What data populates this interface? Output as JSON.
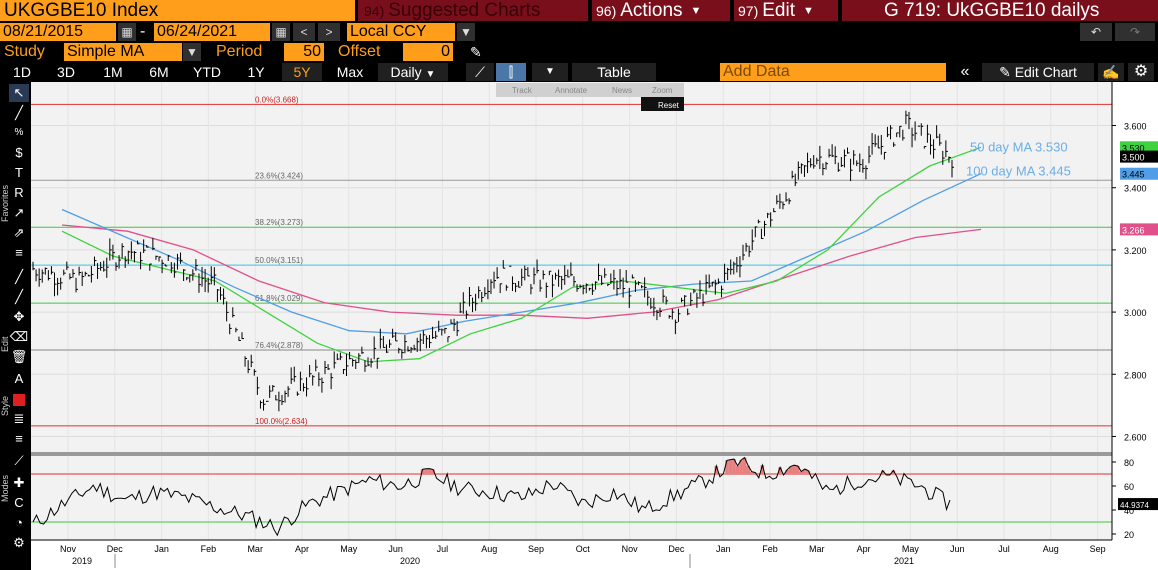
{
  "header": {
    "security": "UKGGBE10 Index",
    "suggested": {
      "num": "94)",
      "label": "Suggested Charts"
    },
    "actions": {
      "num": "96)",
      "label": "Actions"
    },
    "edit": {
      "num": "97)",
      "label": "Edit"
    },
    "chart_title": "G 719: UkGGBE10 dailys"
  },
  "controls": {
    "start_date": "08/21/2015",
    "end_date": "06/24/2021",
    "date_sep": "-",
    "currency": "Local CCY",
    "study_label": "Study",
    "study_value": "Simple MA",
    "period_label": "Period",
    "period_value": "50",
    "offset_label": "Offset",
    "offset_value": "0"
  },
  "timeframes": [
    "1D",
    "3D",
    "1M",
    "6M",
    "YTD",
    "1Y",
    "5Y",
    "Max"
  ],
  "active_timeframe": "5Y",
  "frequency": "Daily",
  "table_label": "Table",
  "add_data_placeholder": "Add Data",
  "edit_chart_label": "Edit Chart",
  "chart_toolbar": {
    "track": "Track",
    "annotate": "Annotate",
    "news": "News",
    "zoom": "Zoom",
    "reset": "Reset"
  },
  "left_labels": {
    "favorites": "Favorites",
    "edit": "Edit",
    "style": "Style",
    "modes": "Modes"
  },
  "colors": {
    "accent": "#ff9e1b",
    "ma50": "#3fd23f",
    "ma100": "#4f9ee6",
    "ma200": "#e0508a",
    "fib": "#ff3b3b"
  },
  "chart_data": {
    "type": "line",
    "price_panel": {
      "ylim": [
        2.55,
        3.74
      ],
      "yticks": [
        "3.600",
        "3.400",
        "3.200",
        "3.000",
        "2.800",
        "2.600"
      ],
      "last_price_tag": "3.500",
      "ma50_tag": "3.530",
      "ma100_tag": "3.445",
      "ma200_tag": "3.266",
      "annotation_ma50": "50 day MA 3.530",
      "annotation_ma100": "100 day MA 3.445",
      "fib_levels": [
        {
          "label": "0.0%(3.668)",
          "value": 3.668
        },
        {
          "label": "23.6%(3.424)",
          "value": 3.424
        },
        {
          "label": "38.2%(3.273)",
          "value": 3.273
        },
        {
          "label": "50.0%(3.151)",
          "value": 3.151
        },
        {
          "label": "61.8%(3.029)",
          "value": 3.029
        },
        {
          "label": "76.4%(2.878)",
          "value": 2.878
        },
        {
          "label": "100.0%(2.634)",
          "value": 2.634
        }
      ],
      "price_series": [
        [
          "Oct 2019",
          3.14
        ],
        [
          "Nov 2019",
          3.1
        ],
        [
          "Dec 2019",
          3.2
        ],
        [
          "Jan 2020",
          3.17
        ],
        [
          "Feb 2020",
          3.08
        ],
        [
          "Mar 2020",
          2.72
        ],
        [
          "Apr 2020",
          2.78
        ],
        [
          "May 2020",
          2.85
        ],
        [
          "Jun 2020",
          2.9
        ],
        [
          "Jul 2020",
          2.93
        ],
        [
          "Aug 2020",
          3.12
        ],
        [
          "Sep 2020",
          3.1
        ],
        [
          "Oct 2020",
          3.1
        ],
        [
          "Nov 2020",
          3.08
        ],
        [
          "Dec 2020",
          3.0
        ],
        [
          "Jan 2021",
          3.1
        ],
        [
          "Feb 2021",
          3.3
        ],
        [
          "Mar 2021",
          3.5
        ],
        [
          "Apr 2021",
          3.48
        ],
        [
          "May 2021",
          3.6
        ],
        [
          "Jun 2021",
          3.5
        ]
      ],
      "ma50_series": [
        3.26,
        3.18,
        3.14,
        3.1,
        3.0,
        2.9,
        2.84,
        2.85,
        2.93,
        2.98,
        3.08,
        3.1,
        3.08,
        3.06,
        3.1,
        3.2,
        3.37,
        3.47,
        3.53
      ],
      "ma100_series": [
        3.33,
        3.25,
        3.17,
        3.08,
        3.0,
        2.94,
        2.93,
        2.97,
        3.0,
        3.03,
        3.07,
        3.09,
        3.1,
        3.18,
        3.26,
        3.36,
        3.445
      ],
      "ma200_series": [
        3.28,
        3.26,
        3.2,
        3.1,
        3.03,
        3.0,
        2.99,
        2.99,
        2.98,
        3.0,
        3.04,
        3.11,
        3.18,
        3.24,
        3.266
      ]
    },
    "rsi_panel": {
      "ylim": [
        15,
        85
      ],
      "yticks": [
        "80",
        "60",
        "40",
        "20"
      ],
      "last_value_tag": "44.9374",
      "overbought": 70,
      "oversold": 30,
      "rsi_series": [
        28,
        45,
        60,
        48,
        55,
        50,
        42,
        35,
        25,
        45,
        55,
        65,
        60,
        70,
        58,
        55,
        50,
        62,
        45,
        55,
        40,
        52,
        65,
        80,
        70,
        78,
        55,
        65,
        68,
        60,
        45
      ]
    },
    "x_axis": {
      "months": [
        "Nov",
        "Dec",
        "Jan",
        "Feb",
        "Mar",
        "Apr",
        "May",
        "Jun",
        "Jul",
        "Aug",
        "Sep",
        "Oct",
        "Nov",
        "Dec",
        "Jan",
        "Feb",
        "Mar",
        "Apr",
        "May",
        "Jun",
        "Jul",
        "Aug",
        "Sep"
      ],
      "years": [
        "2019",
        "2020",
        "2021"
      ]
    }
  }
}
